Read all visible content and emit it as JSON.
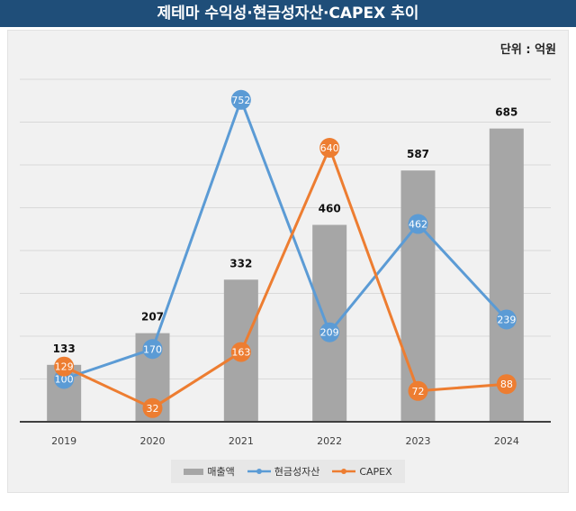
{
  "title": "제테마 수익성·현금성자산·CAPEX 추이",
  "unit": "단위 : 억원",
  "colors": {
    "title_bg": "#1f4e79",
    "bar": "#a6a6a6",
    "cash": "#5b9bd5",
    "capex": "#ed7d31"
  },
  "chart_data": {
    "type": "bar",
    "categories": [
      "2019",
      "2020",
      "2021",
      "2022",
      "2023",
      "2024"
    ],
    "ylim": [
      0,
      800
    ],
    "grid": true,
    "legend_position": "bottom",
    "series": [
      {
        "name": "매출액",
        "type": "bar",
        "values": [
          133,
          207,
          332,
          460,
          587,
          685
        ]
      },
      {
        "name": "현금성자산",
        "type": "line",
        "values": [
          100,
          170,
          752,
          209,
          462,
          239
        ]
      },
      {
        "name": "CAPEX",
        "type": "line",
        "values": [
          129,
          32,
          163,
          640,
          72,
          88
        ]
      }
    ]
  }
}
